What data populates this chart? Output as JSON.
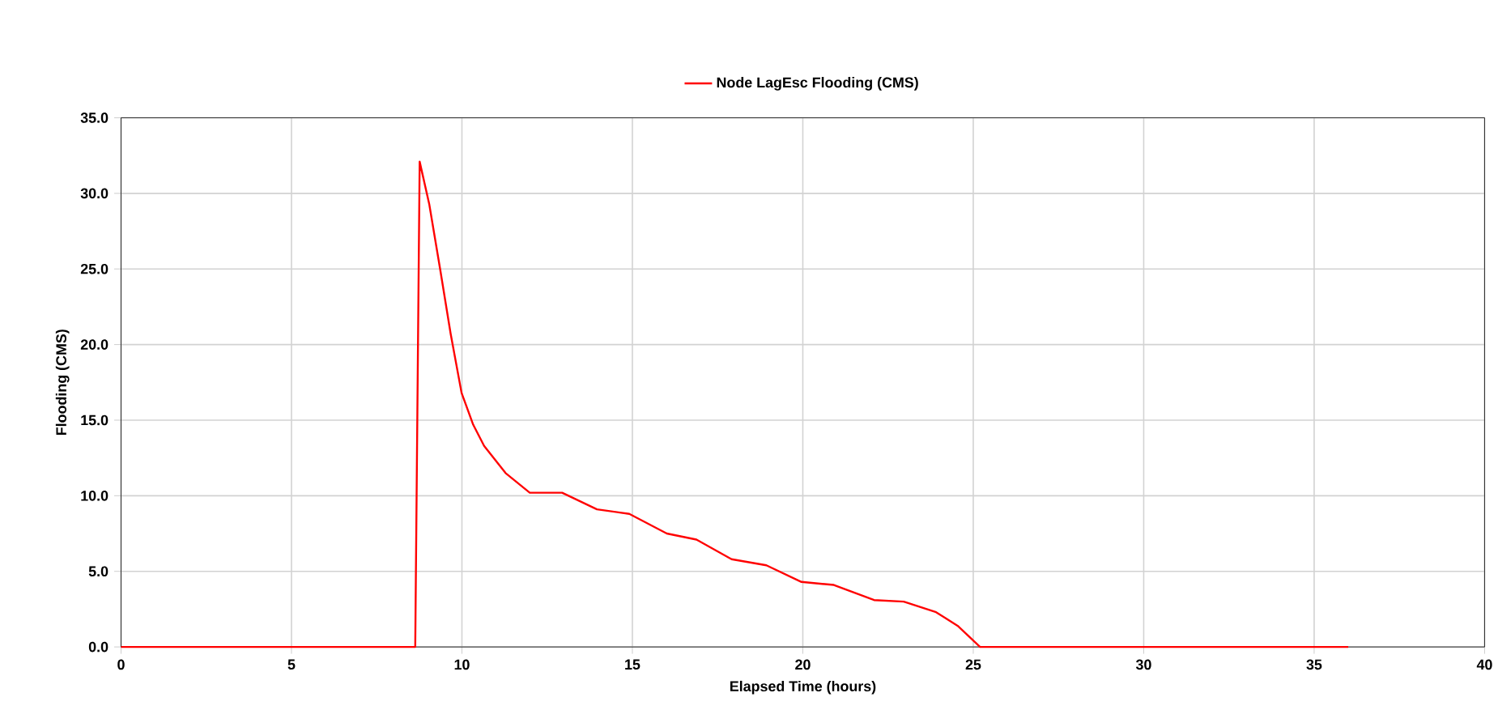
{
  "chart_data": {
    "type": "line",
    "xlabel": "Elapsed Time (hours)",
    "ylabel": "Flooding (CMS)",
    "series": [
      {
        "name": "Node LagEsc Flooding (CMS)",
        "color": "#ff0000",
        "x": [
          0,
          8.63,
          8.76,
          9.04,
          9.36,
          9.67,
          9.99,
          10.33,
          10.65,
          11.28,
          11.99,
          12.94,
          13.96,
          14.91,
          16.01,
          16.88,
          17.91,
          18.93,
          19.96,
          20.91,
          22.09,
          22.96,
          23.91,
          24.54,
          25.2,
          36
        ],
        "values": [
          0,
          0,
          32.1,
          29.3,
          25.0,
          20.7,
          16.8,
          14.7,
          13.3,
          11.5,
          10.2,
          10.2,
          9.1,
          8.8,
          7.5,
          7.1,
          5.8,
          5.4,
          4.3,
          4.1,
          3.1,
          3.0,
          2.3,
          1.4,
          0,
          0
        ]
      }
    ],
    "xlim": [
      0,
      40
    ],
    "xticks": [
      0,
      5,
      10,
      15,
      20,
      25,
      30,
      35,
      40
    ],
    "ylim": [
      0,
      35
    ],
    "yticks": [
      {
        "value": 0,
        "label": "0.0"
      },
      {
        "value": 5,
        "label": "5.0"
      },
      {
        "value": 10,
        "label": "10.0"
      },
      {
        "value": 15,
        "label": "15.0"
      },
      {
        "value": 20,
        "label": "20.0"
      },
      {
        "value": 25,
        "label": "25.0"
      },
      {
        "value": 30,
        "label": "30.0"
      },
      {
        "value": 35,
        "label": "35.0"
      }
    ],
    "grid": true,
    "legend": "top",
    "marker": "none",
    "line_style": "solid"
  }
}
